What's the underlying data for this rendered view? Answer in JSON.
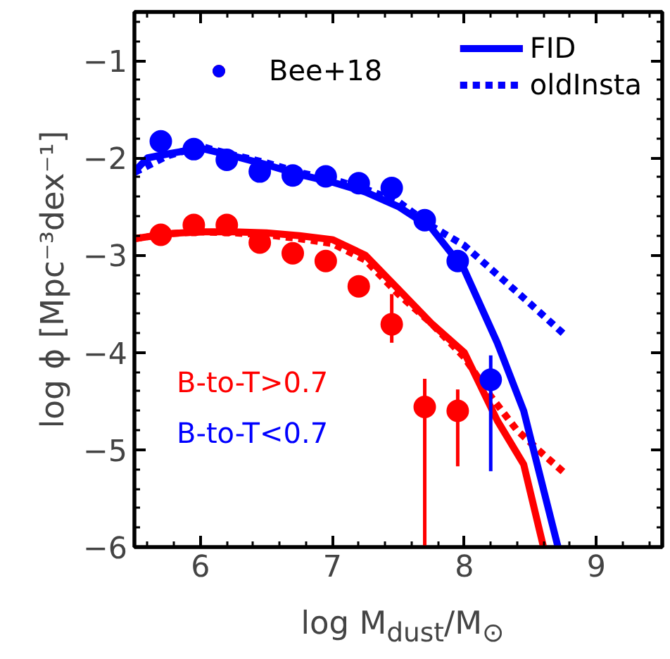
{
  "chart_data": {
    "type": "line",
    "xlabel": "log M$_{dust}$/M$_{⊙}$",
    "ylabel": "log ϕ [Mpc⁻³dex⁻¹]",
    "xlim": [
      5.5,
      9.5
    ],
    "ylim": [
      -6,
      -0.5
    ],
    "xticks": [
      6,
      7,
      8,
      9
    ],
    "yticks": [
      {
        "value": -6,
        "label": "−6"
      },
      {
        "value": -5,
        "label": "−5"
      },
      {
        "value": -4,
        "label": "−4"
      },
      {
        "value": -3,
        "label": "−3"
      },
      {
        "value": -2,
        "label": "−2"
      },
      {
        "value": -1,
        "label": "−1"
      }
    ],
    "grid": false,
    "legend": "top right",
    "annotations": [
      "B-to-T>0.7",
      "B-to-T<0.7"
    ],
    "series": [
      {
        "name": "Bee+18",
        "type": "scatter",
        "marker": "circle",
        "color": "#ff0000",
        "x": [
          5.7,
          5.95,
          6.2,
          6.45,
          6.7,
          6.95,
          7.2,
          7.45,
          7.7,
          7.95
        ],
        "values": [
          -2.79,
          -2.69,
          -2.69,
          -2.87,
          -2.98,
          -3.06,
          -3.32,
          -3.71,
          -4.56,
          -4.6
        ],
        "errors": [
          null,
          null,
          null,
          null,
          null,
          null,
          null,
          [
            -3.9,
            -3.4
          ],
          [
            -6.0,
            -4.27
          ],
          [
            -5.17,
            -4.38
          ]
        ]
      },
      {
        "name": "FID",
        "line_style": "solid",
        "color": "#ff0000",
        "x": [
          5.5,
          5.75,
          6.0,
          6.25,
          6.5,
          6.75,
          7.0,
          7.25,
          7.5,
          7.75,
          8.0,
          8.25,
          8.45,
          8.6
        ],
        "values": [
          -2.83,
          -2.78,
          -2.76,
          -2.76,
          -2.77,
          -2.8,
          -2.84,
          -3.0,
          -3.35,
          -3.7,
          -4.0,
          -4.7,
          -5.15,
          -6.0
        ]
      },
      {
        "name": "oldInsta",
        "line_style": "dotted",
        "color": "#ff0000",
        "x": [
          5.5,
          5.75,
          6.0,
          6.25,
          6.5,
          6.75,
          7.0,
          7.25,
          7.5,
          7.75,
          8.0,
          8.2,
          8.4,
          8.6,
          8.77
        ],
        "values": [
          -2.83,
          -2.78,
          -2.76,
          -2.77,
          -2.79,
          -2.83,
          -2.88,
          -3.05,
          -3.4,
          -3.7,
          -4.05,
          -4.45,
          -4.8,
          -5.05,
          -5.25
        ]
      },
      {
        "type": "scatter",
        "marker": "circle",
        "color": "#0000ff",
        "x": [
          5.7,
          5.95,
          6.2,
          6.45,
          6.7,
          6.95,
          7.2,
          7.45,
          7.7,
          7.95,
          8.2
        ],
        "values": [
          -1.83,
          -1.91,
          -2.02,
          -2.14,
          -2.18,
          -2.19,
          -2.26,
          -2.31,
          -2.64,
          -3.06,
          -4.28
        ],
        "errors": [
          null,
          null,
          null,
          null,
          null,
          null,
          null,
          null,
          null,
          null,
          [
            -5.22,
            -4.03
          ]
        ]
      },
      {
        "line_style": "solid",
        "color": "#0000ff",
        "x": [
          5.5,
          5.6,
          5.75,
          6.0,
          6.25,
          6.5,
          6.75,
          7.0,
          7.25,
          7.5,
          7.75,
          8.0,
          8.25,
          8.45,
          8.71
        ],
        "values": [
          -2.14,
          -2.0,
          -1.96,
          -1.9,
          -1.98,
          -2.07,
          -2.17,
          -2.25,
          -2.35,
          -2.5,
          -2.72,
          -3.15,
          -3.9,
          -4.6,
          -6.0
        ]
      },
      {
        "line_style": "dotted",
        "color": "#0000ff",
        "x": [
          5.5,
          5.75,
          6.0,
          6.25,
          6.5,
          6.75,
          7.0,
          7.25,
          7.5,
          7.75,
          8.0,
          8.25,
          8.5,
          8.77
        ],
        "values": [
          -2.15,
          -1.98,
          -1.88,
          -1.97,
          -2.05,
          -2.15,
          -2.22,
          -2.32,
          -2.45,
          -2.7,
          -2.9,
          -3.2,
          -3.5,
          -3.83
        ]
      }
    ]
  }
}
